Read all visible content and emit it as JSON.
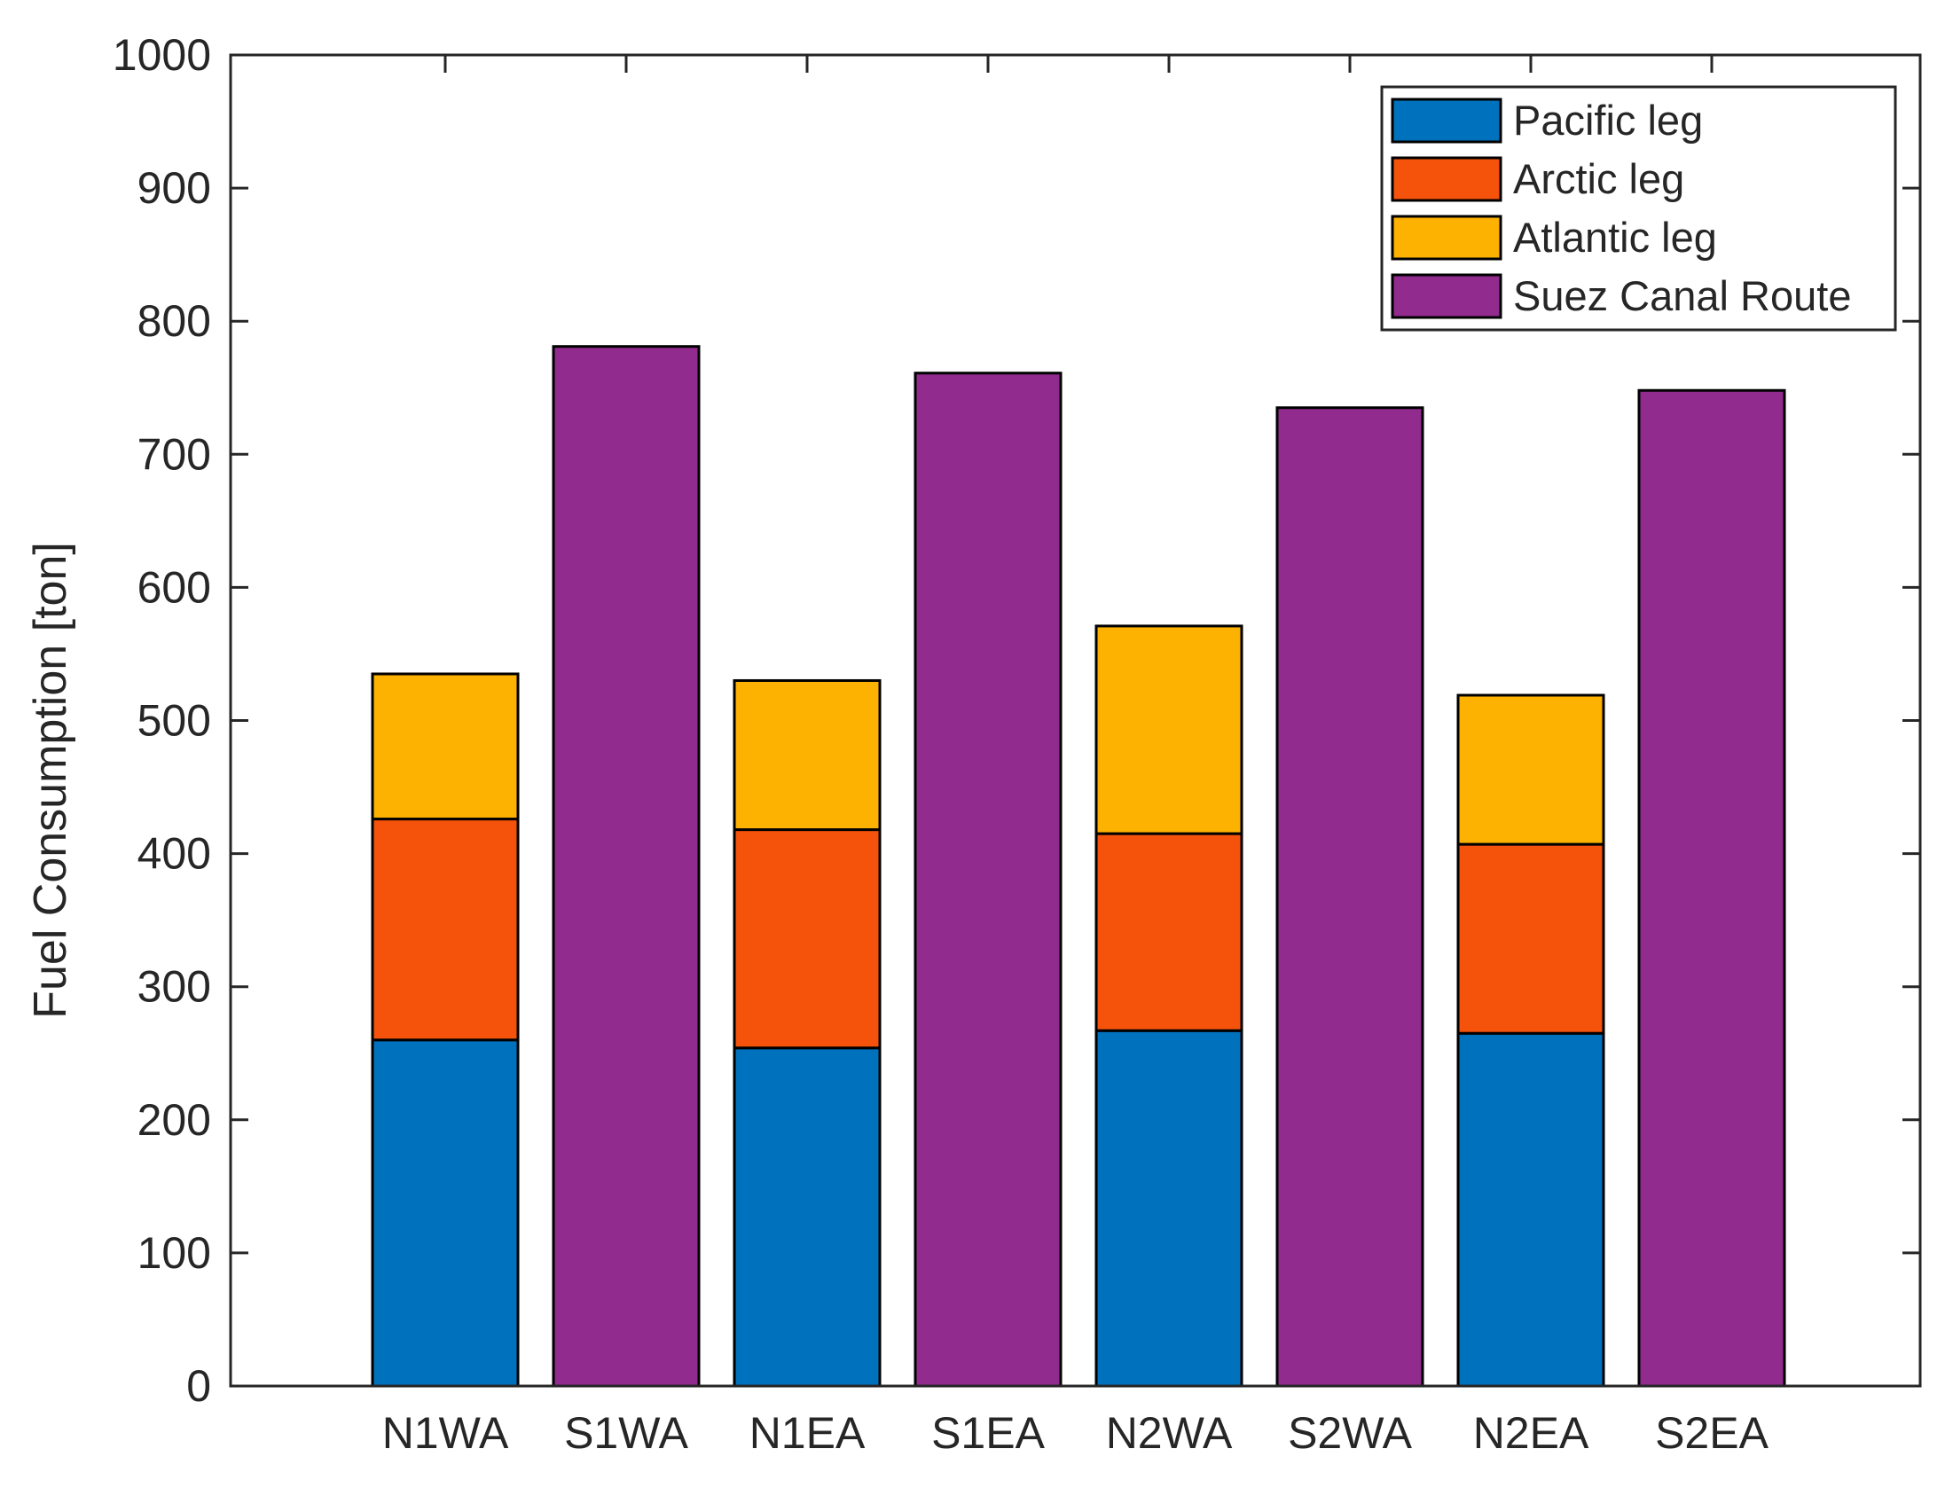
{
  "chart_data": {
    "type": "bar",
    "stacked": true,
    "title": "",
    "xlabel": "",
    "ylabel": "Fuel Consumption [ton]",
    "ylim": [
      0,
      1000
    ],
    "yticks": [
      0,
      100,
      200,
      300,
      400,
      500,
      600,
      700,
      800,
      900,
      1000
    ],
    "grid": false,
    "legend_position": "top-right",
    "categories": [
      "N1WA",
      "S1WA",
      "N1EA",
      "S1EA",
      "N2WA",
      "S2WA",
      "N2EA",
      "S2EA"
    ],
    "series": [
      {
        "name": "Pacific leg",
        "color": "#0072BD",
        "values": [
          260,
          0,
          254,
          0,
          267,
          0,
          265,
          0
        ]
      },
      {
        "name": "Arctic leg",
        "color": "#F5520B",
        "values": [
          166,
          0,
          164,
          0,
          148,
          0,
          142,
          0
        ]
      },
      {
        "name": "Atlantic leg",
        "color": "#FDB100",
        "values": [
          109,
          0,
          112,
          0,
          156,
          0,
          112,
          0
        ]
      },
      {
        "name": "Suez Canal Route",
        "color": "#912B8E",
        "values": [
          0,
          781,
          0,
          761,
          0,
          735,
          0,
          748
        ]
      }
    ]
  }
}
